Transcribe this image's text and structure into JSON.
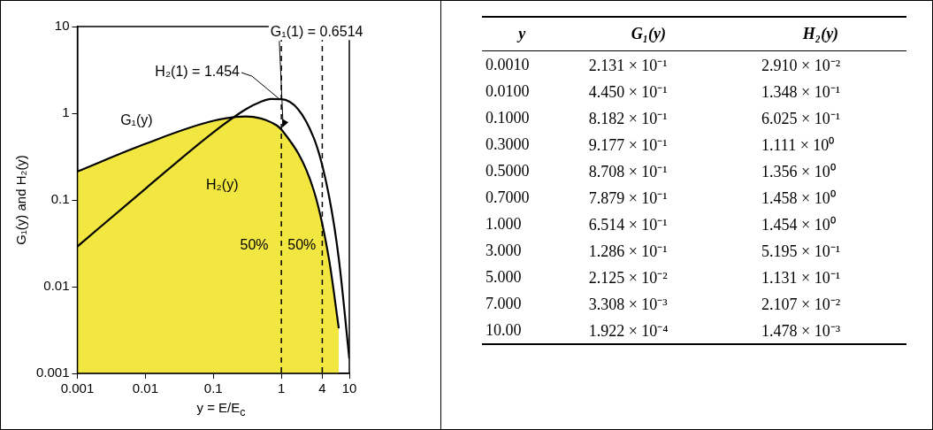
{
  "chart_data": [
    {
      "type": "line",
      "xlabel": "y = E/E$_{c}$",
      "ylabel": "G₁(y) and H₂(y)",
      "x": [
        0.001,
        0.01,
        0.1,
        0.3,
        0.5,
        0.7,
        1,
        3,
        5,
        7,
        10
      ],
      "series": [
        {
          "name": "G₁(y)",
          "type": "area",
          "color": "#f2e640",
          "values": [
            0.2131,
            0.445,
            0.8182,
            0.9177,
            0.8708,
            0.7879,
            0.6514,
            0.1286,
            0.02125,
            0.003308,
            null
          ]
        },
        {
          "name": "H₂(y)",
          "type": "line",
          "color": "#000000",
          "values": [
            0.0291,
            0.1348,
            0.6025,
            1.111,
            1.356,
            1.458,
            1.454,
            0.5195,
            0.1131,
            0.02107,
            0.001478
          ]
        }
      ],
      "xlim": [
        0.001,
        10
      ],
      "ylim": [
        0.001,
        10
      ],
      "xticks": [
        0.001,
        0.01,
        0.1,
        1,
        4,
        10
      ],
      "yticks": [
        0.001,
        0.01,
        0.1,
        1,
        10
      ],
      "log": "xy",
      "ref_lines": [
        {
          "axis": "x",
          "value": 1,
          "color": "#000000",
          "line_style": "dashed"
        },
        {
          "axis": "x",
          "value": 4,
          "color": "#000000",
          "line_style": "dashed"
        }
      ],
      "annotations": [
        {
          "text": "G₁(1) = 0.6514",
          "x": 1,
          "y": 0.6514
        },
        {
          "text": "H₂(1) = 1.454",
          "x": 1,
          "y": 1.454
        },
        {
          "text": "50%",
          "x": 0.4,
          "y": 0.03
        },
        {
          "text": "50%",
          "x": 2,
          "y": 0.03
        }
      ]
    },
    {
      "type": "other",
      "xlabel": "y",
      "categories": [
        "0.0010",
        "0.0100",
        "0.1000",
        "0.3000",
        "0.5000",
        "0.7000",
        "1.000",
        "3.000",
        "5.000",
        "7.000",
        "10.00"
      ],
      "series": [
        {
          "name": "G₁(y)",
          "values": [
            0.2131,
            0.445,
            0.8182,
            0.9177,
            0.8708,
            0.7879,
            0.6514,
            0.1286,
            0.02125,
            0.003308,
            0.0001922
          ],
          "value_labels": [
            "2.131 × 10⁻¹",
            "4.450 × 10⁻¹",
            "8.182 × 10⁻¹",
            "9.177 × 10⁻¹",
            "8.708 × 10⁻¹",
            "7.879 × 10⁻¹",
            "6.514 × 10⁻¹",
            "1.286 × 10⁻¹",
            "2.125 × 10⁻²",
            "3.308 × 10⁻³",
            "1.922 × 10⁻⁴"
          ]
        },
        {
          "name": "H₂(y)",
          "values": [
            0.0291,
            0.1348,
            0.6025,
            1.111,
            1.356,
            1.458,
            1.454,
            0.5195,
            0.1131,
            0.02107,
            0.001478
          ],
          "value_labels": [
            "2.910 × 10⁻²",
            "1.348 × 10⁻¹",
            "6.025 × 10⁻¹",
            "1.111 × 10⁰",
            "1.356 × 10⁰",
            "1.458 × 10⁰",
            "1.454 × 10⁰",
            "5.195 × 10⁻¹",
            "1.131 × 10⁻¹",
            "2.107 × 10⁻²",
            "1.478 × 10⁻³"
          ]
        }
      ]
    }
  ]
}
